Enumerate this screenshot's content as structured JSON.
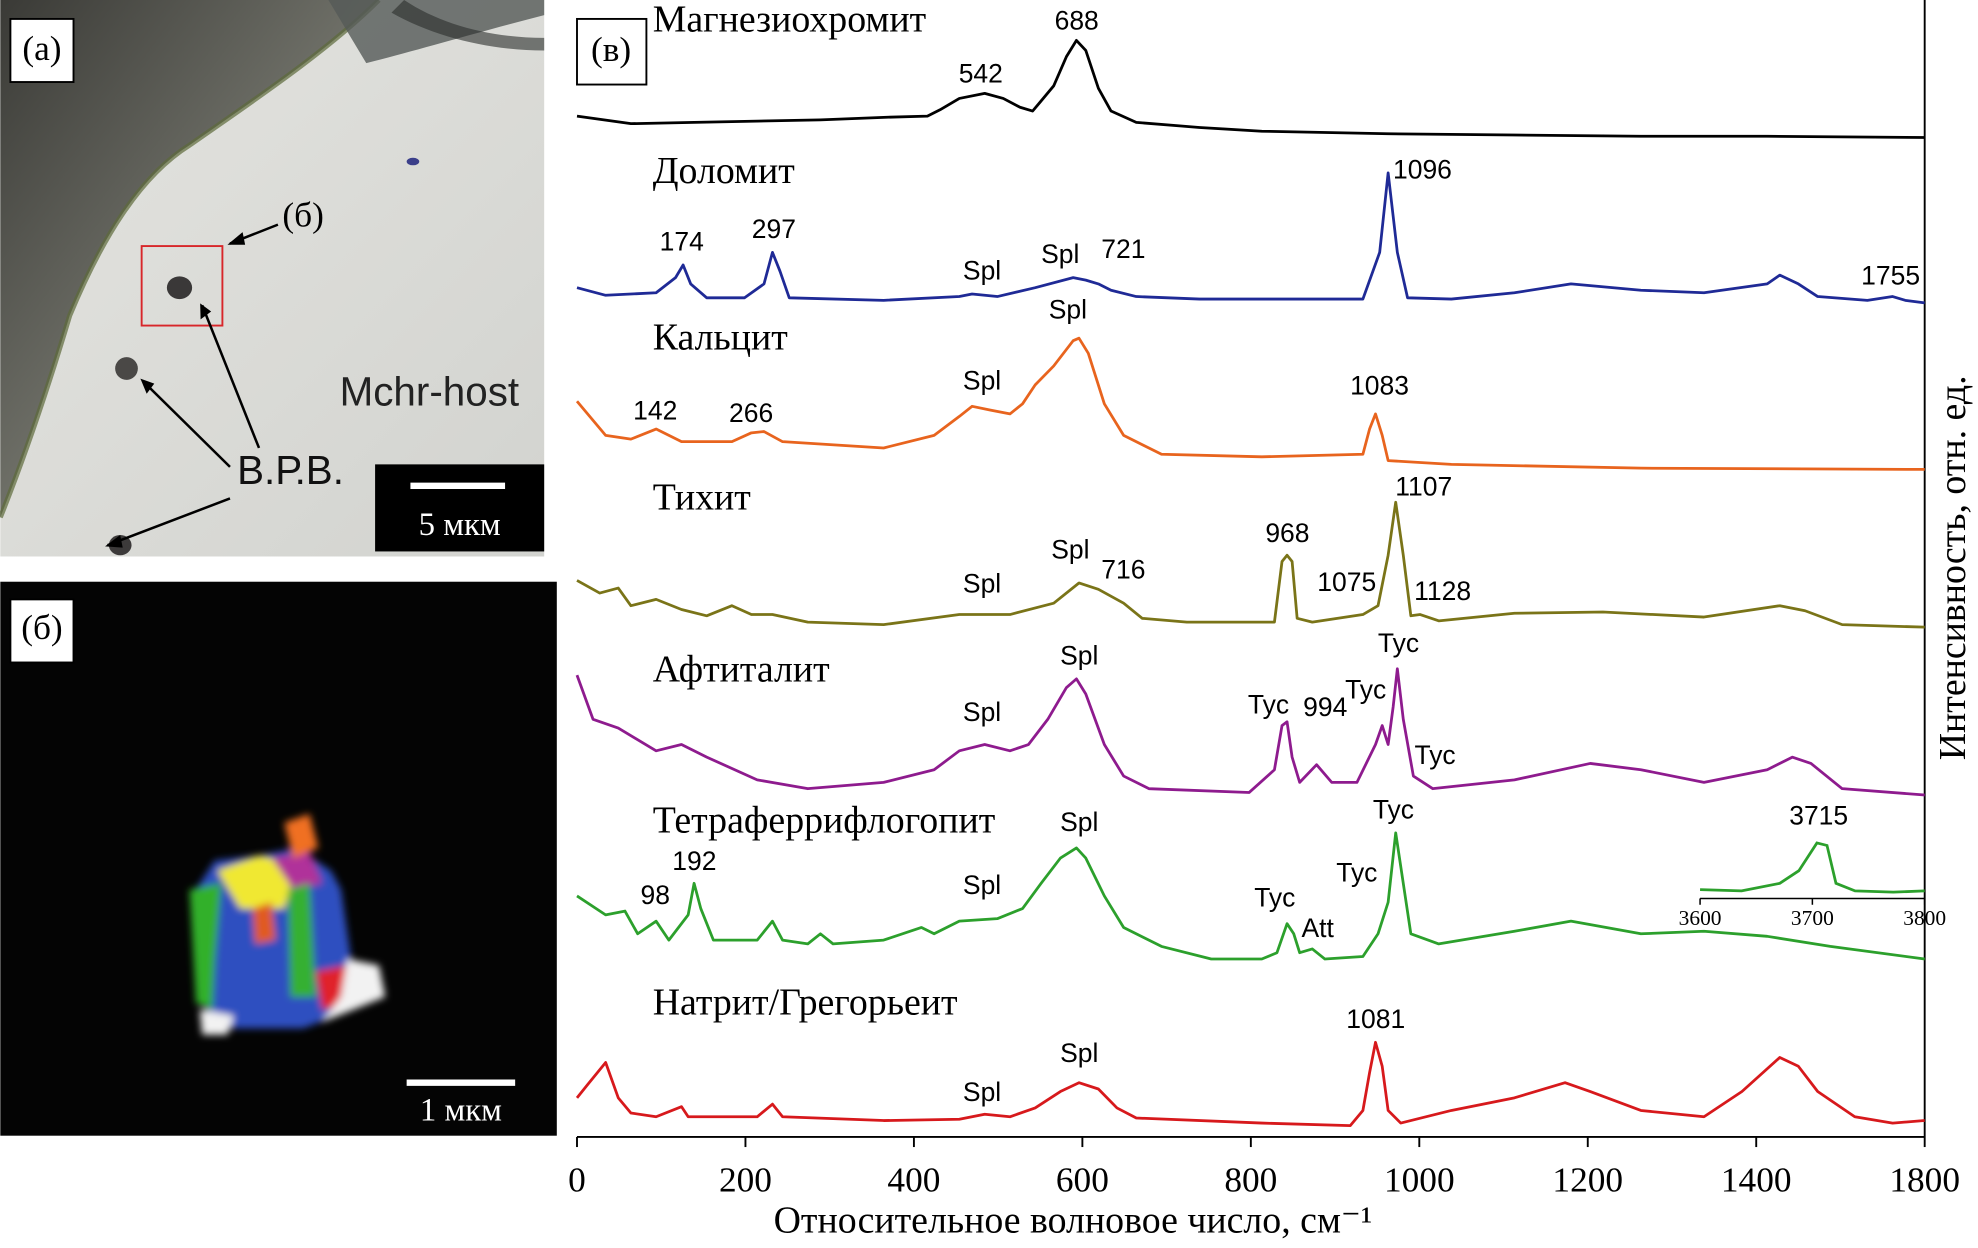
{
  "panel_a": {
    "label": "(а)",
    "callout": "(б)",
    "host_label": "Mchr-host",
    "inclusion_label": "В.Р.В.",
    "scale_bar": "5 мкм"
  },
  "panel_b": {
    "label": "(б)",
    "scale_bar": "1 мкм"
  },
  "chart_data": {
    "type": "line",
    "panel_label": "(в)",
    "xlabel": "Относительное волновое число, см⁻¹",
    "ylabel": "Интенсивность, отн. ед.",
    "xlim": [
      0,
      1600
    ],
    "xticks": [
      0,
      200,
      400,
      600,
      800,
      1000,
      1200,
      1400,
      {
        "value": 1600,
        "label": "1800"
      }
    ],
    "series": [
      {
        "name": "Магнезиохромит",
        "color": "#000000",
        "x": [
          0,
          64,
          139,
          214,
          289,
          364,
          416,
          431,
          454,
          484,
          506,
          526,
          541,
          551,
          566,
          581,
          593,
          604,
          619,
          634,
          664,
          739,
          813,
          963,
          1113,
          1263,
          1413,
          1600
        ],
        "values": [
          18,
          12,
          13,
          14,
          15,
          17,
          18,
          23,
          32,
          36,
          32,
          25,
          22,
          30,
          42,
          65,
          78,
          70,
          40,
          22,
          13,
          9,
          6,
          4,
          3,
          2,
          2,
          1
        ],
        "annotations": [
          "542",
          "688"
        ]
      },
      {
        "name": "Доломит",
        "color": "#1f2a96",
        "x": [
          0,
          34,
          94,
          117,
          126,
          135,
          154,
          199,
          222,
          232,
          241,
          252,
          364,
          454,
          469,
          499,
          544,
          589,
          604,
          619,
          634,
          664,
          739,
          933,
          953,
          963,
          974,
          986,
          1038,
          1113,
          1180,
          1263,
          1338,
          1413,
          1428,
          1450,
          1473,
          1532,
          1562,
          1577,
          1600
        ],
        "values": [
          12,
          6,
          8,
          20,
          30,
          15,
          4,
          4,
          15,
          40,
          25,
          4,
          2,
          5,
          7,
          5,
          12,
          20,
          18,
          15,
          10,
          5,
          3,
          3,
          40,
          103,
          40,
          4,
          3,
          8,
          15,
          10,
          8,
          15,
          22,
          15,
          5,
          2,
          5,
          2,
          0
        ],
        "annotations": [
          "174",
          "297",
          "Spl",
          "Spl",
          "721",
          "1096",
          "1755"
        ]
      },
      {
        "name": "Кальцит",
        "color": "#e8641e",
        "x": [
          0,
          34,
          64,
          94,
          124,
          184,
          207,
          222,
          244,
          364,
          424,
          454,
          469,
          491,
          514,
          529,
          544,
          566,
          589,
          596,
          607,
          626,
          649,
          694,
          813,
          933,
          941,
          948,
          956,
          963,
          1038,
          1263,
          1600
        ],
        "values": [
          54,
          27,
          24,
          32,
          22,
          22,
          29,
          30,
          22,
          17,
          27,
          42,
          50,
          47,
          44,
          52,
          67,
          82,
          102,
          104,
          92,
          52,
          27,
          12,
          10,
          12,
          32,
          44,
          27,
          7,
          4,
          1,
          0
        ],
        "annotations": [
          "142",
          "266",
          "Spl",
          "Spl",
          "1083"
        ]
      },
      {
        "name": "Тихит",
        "color": "#7a7418",
        "x": [
          0,
          27,
          49,
          64,
          94,
          124,
          154,
          184,
          207,
          232,
          274,
          364,
          454,
          514,
          566,
          596,
          619,
          649,
          671,
          724,
          828,
          837,
          843,
          849,
          855,
          873,
          933,
          951,
          963,
          972,
          981,
          990,
          1001,
          1023,
          1113,
          1218,
          1338,
          1428,
          1458,
          1502,
          1600
        ],
        "values": [
          37,
          27,
          31,
          17,
          22,
          14,
          9,
          17,
          10,
          10,
          4,
          2,
          10,
          10,
          19,
          35,
          30,
          19,
          7,
          4,
          4,
          52,
          57,
          52,
          7,
          4,
          10,
          17,
          57,
          99,
          57,
          9,
          10,
          5,
          11,
          12,
          8,
          17,
          13,
          2,
          0
        ],
        "annotations": [
          "Spl",
          "Spl",
          "716",
          "968",
          "1075",
          "1107",
          "1128"
        ]
      },
      {
        "name": "Афтиталит",
        "color": "#8e1b8e",
        "x": [
          0,
          19,
          49,
          94,
          124,
          154,
          214,
          274,
          364,
          424,
          454,
          484,
          514,
          536,
          559,
          581,
          593,
          604,
          626,
          649,
          679,
          798,
          828,
          837,
          843,
          849,
          858,
          878,
          896,
          926,
          948,
          956,
          963,
          969,
          974,
          981,
          993,
          1016,
          1113,
          1203,
          1263,
          1338,
          1413,
          1443,
          1465,
          1502,
          1600
        ],
        "values": [
          95,
          60,
          53,
          35,
          40,
          30,
          12,
          5,
          10,
          20,
          35,
          40,
          35,
          40,
          60,
          85,
          92,
          80,
          40,
          15,
          5,
          2,
          20,
          55,
          58,
          30,
          10,
          24,
          10,
          10,
          40,
          55,
          40,
          70,
          100,
          60,
          15,
          5,
          12,
          25,
          20,
          10,
          20,
          30,
          25,
          5,
          0
        ],
        "annotations": [
          "Spl",
          "Spl",
          "Tyc",
          "994",
          "Tyc",
          "Tyc",
          "Tyc"
        ]
      },
      {
        "name": "Тетраферрифлогопит",
        "color": "#2ca02c",
        "x": [
          0,
          34,
          57,
          72,
          94,
          109,
          132,
          139,
          147,
          162,
          214,
          232,
          244,
          274,
          289,
          304,
          364,
          409,
          424,
          454,
          499,
          529,
          551,
          574,
          593,
          604,
          626,
          649,
          694,
          753,
          813,
          831,
          843,
          851,
          858,
          873,
          888,
          933,
          951,
          963,
          972,
          981,
          990,
          1023,
          1113,
          1180,
          1263,
          1338,
          1413,
          1488,
          1600
        ],
        "values": [
          50,
          35,
          38,
          20,
          30,
          15,
          35,
          60,
          40,
          15,
          15,
          30,
          15,
          12,
          20,
          12,
          15,
          25,
          20,
          30,
          32,
          40,
          60,
          80,
          88,
          80,
          50,
          25,
          10,
          0,
          0,
          5,
          28,
          20,
          5,
          8,
          0,
          2,
          20,
          45,
          100,
          60,
          20,
          12,
          22,
          30,
          20,
          22,
          18,
          10,
          0
        ],
        "annotations": [
          "98",
          "192",
          "Spl",
          "Spl",
          "Tyc",
          "Att",
          "Tyc",
          "Tyc"
        ]
      },
      {
        "name": "Натрит/Грегорьеит",
        "color": "#d7191c",
        "x": [
          0,
          12,
          34,
          49,
          64,
          94,
          124,
          132,
          214,
          232,
          244,
          364,
          454,
          484,
          514,
          544,
          574,
          596,
          619,
          641,
          664,
          813,
          918,
          933,
          941,
          948,
          956,
          963,
          978,
          1038,
          1113,
          1173,
          1203,
          1263,
          1338,
          1383,
          1428,
          1450,
          1473,
          1517,
          1562,
          1600
        ],
        "values": [
          22,
          32,
          50,
          22,
          10,
          7,
          15,
          7,
          7,
          17,
          7,
          4,
          5,
          9,
          7,
          14,
          27,
          34,
          29,
          14,
          6,
          2,
          0,
          12,
          42,
          66,
          47,
          12,
          2,
          12,
          22,
          34,
          27,
          12,
          7,
          27,
          54,
          47,
          27,
          7,
          2,
          4
        ],
        "annotations": [
          "Spl",
          "Spl",
          "1081"
        ]
      }
    ],
    "inset": {
      "color": "#2ca02c",
      "xlim": [
        3600,
        3800
      ],
      "xticks": [
        3600,
        3700,
        3800
      ],
      "x": [
        3600,
        3637,
        3671,
        3688,
        3704,
        3713,
        3721,
        3738,
        3772,
        3800
      ],
      "values": [
        5,
        4,
        10,
        20,
        42,
        40,
        10,
        4,
        3,
        4
      ],
      "annotations": [
        "3715"
      ]
    }
  }
}
